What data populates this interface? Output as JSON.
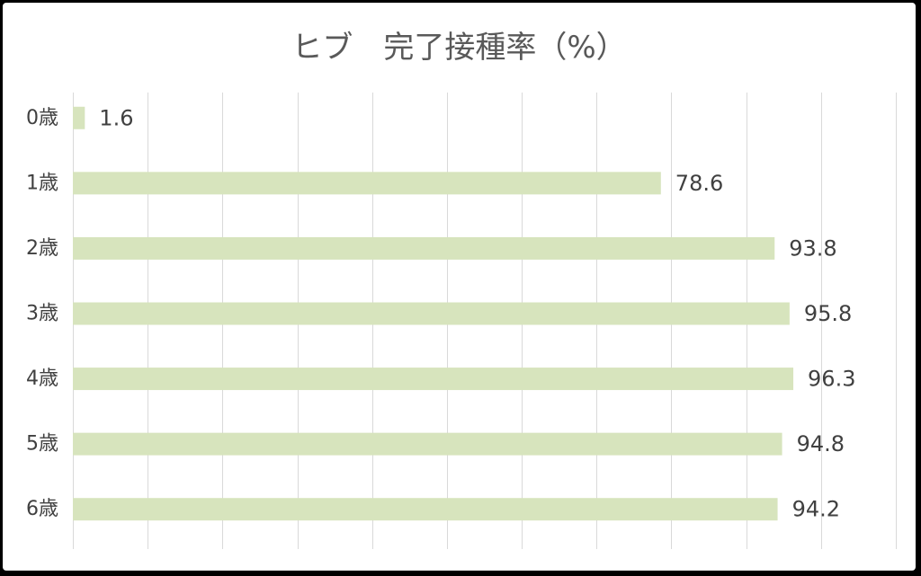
{
  "chart_data": {
    "type": "bar",
    "orientation": "horizontal",
    "title": "ヒブ　完了接種率（%）",
    "categories": [
      "0歳",
      "1歳",
      "2歳",
      "3歳",
      "4歳",
      "5歳",
      "6歳"
    ],
    "values": [
      1.6,
      78.6,
      93.8,
      95.8,
      96.3,
      94.8,
      94.2
    ],
    "xlim": [
      0,
      110
    ],
    "grid": true,
    "legend": "none",
    "bar_color": "#d7e4bd",
    "grid_color": "#d9d9d9"
  }
}
